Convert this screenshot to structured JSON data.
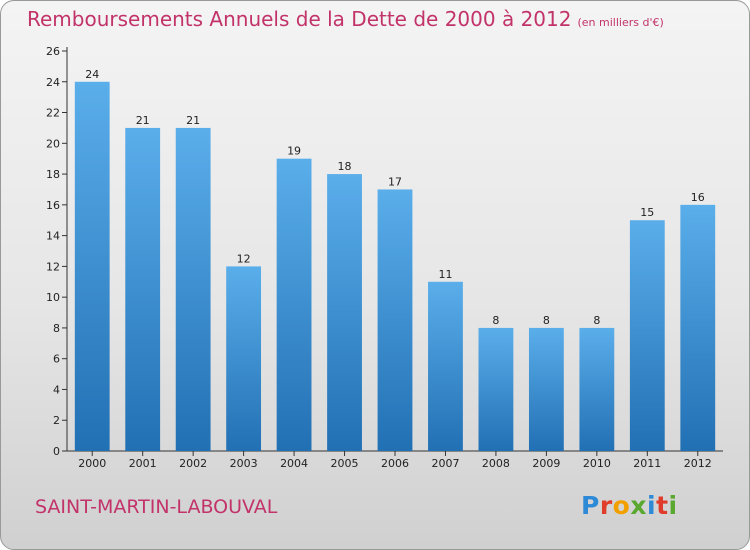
{
  "header": {
    "title": "Remboursements Annuels de la Dette de 2000 à 2012",
    "unit": "(en milliers d'€)"
  },
  "footer": {
    "commune": "SAINT-MARTIN-LABOUVAL",
    "logo_letters": [
      "P",
      "r",
      "o",
      "x",
      "i",
      "t",
      "i"
    ]
  },
  "colors": {
    "title": "#c2336a",
    "bar_top": "#5aaeea",
    "bar_bottom": "#2270b4",
    "logo": [
      "#2e8ad6",
      "#e03c2b",
      "#f2a000",
      "#5aa82f",
      "#2e8ad6",
      "#e03c2b",
      "#5aa82f"
    ]
  },
  "chart_data": {
    "type": "bar",
    "categories": [
      "2000",
      "2001",
      "2002",
      "2003",
      "2004",
      "2005",
      "2006",
      "2007",
      "2008",
      "2009",
      "2010",
      "2011",
      "2012"
    ],
    "values": [
      24,
      21,
      21,
      12,
      19,
      18,
      17,
      11,
      8,
      8,
      8,
      15,
      16
    ],
    "title": "Remboursements Annuels de la Dette de 2000 à 2012",
    "xlabel": "",
    "ylabel": "",
    "ylim": [
      0,
      26
    ],
    "yticks": [
      0,
      2,
      4,
      6,
      8,
      10,
      12,
      14,
      16,
      18,
      20,
      22,
      24,
      26
    ],
    "grid": false,
    "legend": "none"
  }
}
